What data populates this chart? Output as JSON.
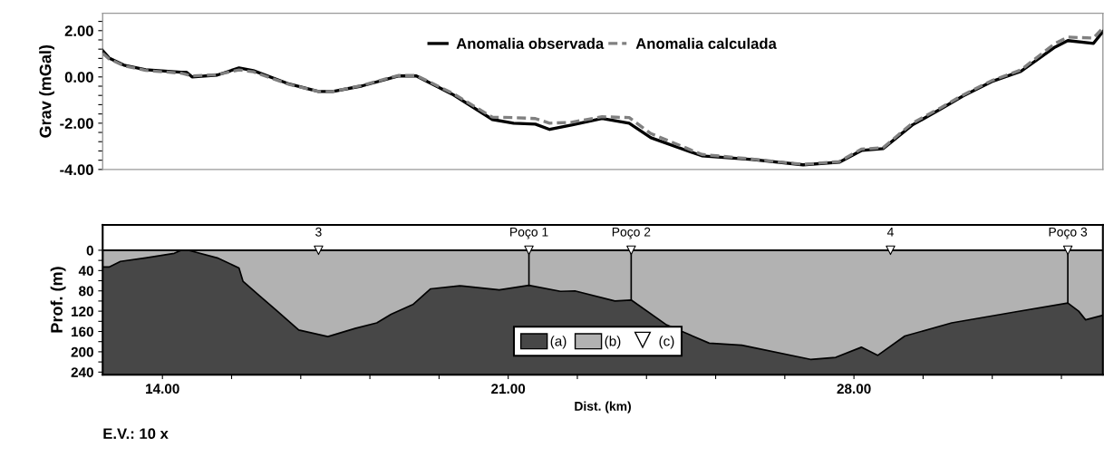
{
  "chart_data": [
    {
      "type": "line",
      "ylabel": "Grav (mGal)",
      "xlim": [
        12.79,
        33.04
      ],
      "ylim": [
        -4,
        2.75
      ],
      "yticks": [
        {
          "value": 2,
          "label": "2.00"
        },
        {
          "value": 0,
          "label": "0.00"
        },
        {
          "value": -2,
          "label": "-2.00"
        },
        {
          "value": -4,
          "label": "-4.00"
        },
        {
          "value": 2.4,
          "label": null
        },
        {
          "value": 1.6,
          "label": null
        },
        {
          "value": 1.2,
          "label": null
        },
        {
          "value": 0.8,
          "label": null
        },
        {
          "value": 0.4,
          "label": null
        },
        {
          "value": -0.4,
          "label": null
        },
        {
          "value": -0.8,
          "label": null
        },
        {
          "value": -1.2,
          "label": null
        },
        {
          "value": -1.6,
          "label": null
        },
        {
          "value": -2.4,
          "label": null
        },
        {
          "value": -2.8,
          "label": null
        },
        {
          "value": -3.2,
          "label": null
        },
        {
          "value": -3.6,
          "label": null
        }
      ],
      "tick_labels": "y",
      "legend": "top",
      "series": [
        {
          "name": "Anomalia observada",
          "color": "#000000",
          "line_style": "solid",
          "x": [
            12.79,
            12.92,
            13.22,
            13.66,
            14.38,
            14.49,
            14.6,
            15.11,
            15.55,
            15.84,
            16.57,
            17.16,
            17.45,
            18.04,
            18.77,
            19.14,
            19.87,
            20.68,
            21.11,
            21.55,
            21.84,
            22.28,
            22.9,
            23.45,
            23.89,
            24.92,
            25.94,
            26.97,
            27.7,
            28.15,
            28.59,
            29.18,
            29.77,
            30.21,
            30.79,
            31.38,
            32.07,
            32.33,
            32.85,
            33.04
          ],
          "values": [
            1.14,
            0.82,
            0.51,
            0.31,
            0.2,
            0.2,
            0.0,
            0.08,
            0.39,
            0.27,
            -0.31,
            -0.63,
            -0.63,
            -0.39,
            0.04,
            0.04,
            -0.75,
            -1.84,
            -2.0,
            -2.04,
            -2.27,
            -2.08,
            -1.8,
            -2.0,
            -2.63,
            -3.41,
            -3.57,
            -3.8,
            -3.69,
            -3.18,
            -3.1,
            -2.08,
            -1.37,
            -0.82,
            -0.2,
            0.24,
            1.29,
            1.57,
            1.45,
            1.96
          ]
        },
        {
          "name": "Anomalia calculada",
          "color": "#808080",
          "line_style": "dashed",
          "x": [
            12.79,
            12.92,
            13.22,
            13.66,
            14.38,
            14.6,
            15.11,
            15.55,
            15.84,
            16.57,
            17.16,
            17.45,
            18.04,
            18.77,
            19.14,
            19.87,
            20.68,
            21.11,
            21.55,
            21.84,
            22.28,
            22.9,
            23.45,
            23.89,
            24.92,
            25.94,
            26.97,
            27.7,
            28.15,
            28.59,
            29.18,
            29.77,
            30.21,
            30.79,
            31.38,
            32.07,
            32.33,
            32.85,
            33.04
          ],
          "values": [
            1.02,
            0.78,
            0.48,
            0.28,
            0.16,
            0.04,
            0.1,
            0.3,
            0.22,
            -0.33,
            -0.63,
            -0.63,
            -0.37,
            0.06,
            0.06,
            -0.7,
            -1.74,
            -1.76,
            -1.8,
            -2.0,
            -1.96,
            -1.72,
            -1.76,
            -2.45,
            -3.35,
            -3.55,
            -3.78,
            -3.66,
            -3.12,
            -3.06,
            -2.0,
            -1.32,
            -0.78,
            -0.16,
            0.3,
            1.45,
            1.72,
            1.68,
            2.12
          ]
        }
      ]
    },
    {
      "type": "area",
      "xlabel": "Dist. (km)",
      "ylabel": "Prof. (m)",
      "xlim": [
        12.79,
        33.04
      ],
      "ylim": [
        245,
        -50
      ],
      "xticks": [
        {
          "value": 14,
          "label": "14.00"
        },
        {
          "value": 21,
          "label": "21.00"
        },
        {
          "value": 28,
          "label": "28.00"
        },
        {
          "value": 15.4,
          "label": null
        },
        {
          "value": 16.8,
          "label": null
        },
        {
          "value": 18.2,
          "label": null
        },
        {
          "value": 19.6,
          "label": null
        },
        {
          "value": 22.4,
          "label": null
        },
        {
          "value": 23.8,
          "label": null
        },
        {
          "value": 25.2,
          "label": null
        },
        {
          "value": 26.6,
          "label": null
        },
        {
          "value": 29.4,
          "label": null
        },
        {
          "value": 30.8,
          "label": null
        },
        {
          "value": 32.2,
          "label": null
        }
      ],
      "yticks": [
        0,
        40,
        80,
        120,
        160,
        200,
        240,
        {
          "value": 20,
          "label": null
        },
        {
          "value": 60,
          "label": null
        },
        {
          "value": 100,
          "label": null
        },
        {
          "value": 140,
          "label": null
        },
        {
          "value": 180,
          "label": null
        },
        {
          "value": 220,
          "label": null
        }
      ],
      "legend": "bottom",
      "bands": [
        {
          "axis": "y",
          "from": 0,
          "to": 245,
          "label": "(a)",
          "color": "#474747"
        }
      ],
      "series": [
        {
          "name": "(b)",
          "type": "area",
          "color": "#b2b2b2",
          "x": [
            12.79,
            12.92,
            13.15,
            13.66,
            14.24,
            14.38,
            14.53,
            15.11,
            15.55,
            15.63,
            15.96,
            16.29,
            16.76,
            17.35,
            17.9,
            18.34,
            18.63,
            19.07,
            19.43,
            20.02,
            20.82,
            21.42,
            22.06,
            22.35,
            23.16,
            23.49,
            24.19,
            25.07,
            25.73,
            27.12,
            27.63,
            28.15,
            28.48,
            29.03,
            29.98,
            31.23,
            32.33,
            32.55,
            32.69,
            33.04
          ],
          "values": [
            33,
            33,
            22,
            15,
            6,
            0,
            0,
            15,
            35,
            61,
            89,
            117,
            157,
            170,
            154,
            143,
            126,
            107,
            76,
            70,
            78,
            69,
            81,
            80,
            100,
            98,
            146,
            183,
            187,
            215,
            211,
            191,
            207,
            169,
            143,
            122,
            104,
            120,
            137,
            128
          ]
        },
        {
          "type": "line",
          "color": "#000000",
          "x": [
            21.42,
            21.42
          ],
          "values": [
            0,
            69
          ]
        },
        {
          "type": "line",
          "color": "#000000",
          "x": [
            23.49,
            23.49
          ],
          "values": [
            0,
            98
          ]
        },
        {
          "type": "line",
          "color": "#000000",
          "x": [
            32.33,
            32.33
          ],
          "values": [
            0,
            104
          ]
        },
        {
          "name": "(c)",
          "type": "scatter",
          "color": "#ffffff",
          "marker": "triangle",
          "x": [
            17.16,
            21.42,
            23.49,
            28.74,
            32.33
          ],
          "values": [
            0,
            0,
            0,
            0,
            0
          ]
        }
      ],
      "annotations": [
        {
          "text": "3",
          "x": 17.16,
          "y": 0
        },
        {
          "text": "Poço 1",
          "x": 21.42,
          "y": 0
        },
        {
          "text": "Poço 2",
          "x": 23.49,
          "y": 0
        },
        {
          "text": "4",
          "x": 28.74,
          "y": 0
        },
        {
          "text": "Poço 3",
          "x": 32.33,
          "y": 0
        },
        "E.V.: 10 x"
      ]
    }
  ]
}
